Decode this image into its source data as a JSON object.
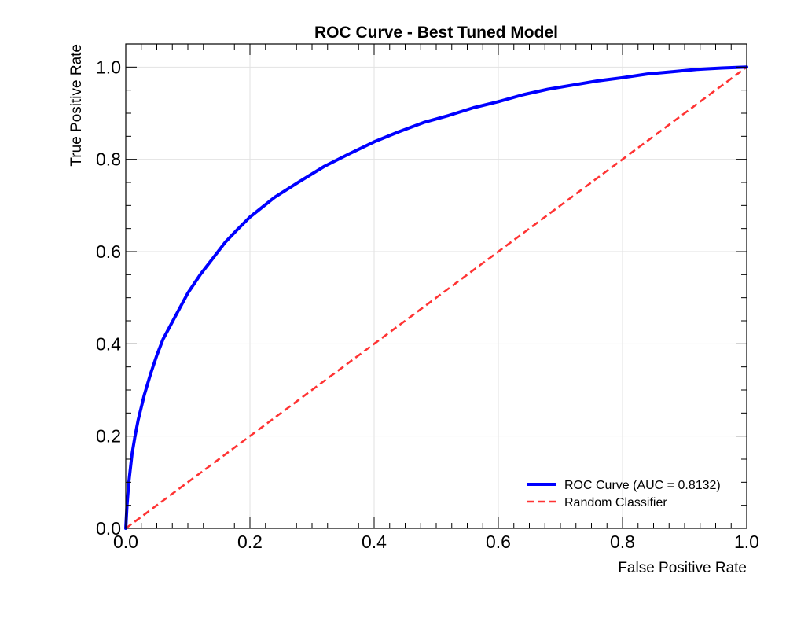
{
  "chart_data": {
    "type": "line",
    "title": "ROC Curve - Best Tuned Model",
    "xlabel": "False Positive Rate",
    "ylabel": "True Positive Rate",
    "xlim": [
      0.0,
      1.0
    ],
    "ylim": [
      0.0,
      1.05
    ],
    "xticks": [
      0.0,
      0.2,
      0.4,
      0.6,
      0.8,
      1.0
    ],
    "yticks": [
      0.0,
      0.2,
      0.4,
      0.6,
      0.8,
      1.0
    ],
    "xtick_labels": [
      "0.0",
      "0.2",
      "0.4",
      "0.6",
      "0.8",
      "1.0"
    ],
    "ytick_labels": [
      "0.0",
      "0.2",
      "0.4",
      "0.6",
      "0.8",
      "1.0"
    ],
    "grid": true,
    "legend_position": "lower-right",
    "series": [
      {
        "name": "ROC Curve (AUC = 0.8132)",
        "color": "#0000ff",
        "style": "solid",
        "x": [
          0.0,
          0.002,
          0.005,
          0.01,
          0.015,
          0.02,
          0.03,
          0.04,
          0.05,
          0.06,
          0.07,
          0.08,
          0.1,
          0.12,
          0.14,
          0.16,
          0.18,
          0.2,
          0.24,
          0.28,
          0.32,
          0.36,
          0.4,
          0.44,
          0.48,
          0.52,
          0.56,
          0.6,
          0.64,
          0.68,
          0.72,
          0.76,
          0.8,
          0.84,
          0.88,
          0.92,
          0.96,
          1.0
        ],
        "y": [
          0.0,
          0.05,
          0.1,
          0.16,
          0.2,
          0.235,
          0.29,
          0.335,
          0.375,
          0.41,
          0.435,
          0.46,
          0.51,
          0.55,
          0.585,
          0.62,
          0.648,
          0.675,
          0.718,
          0.752,
          0.785,
          0.812,
          0.838,
          0.86,
          0.88,
          0.895,
          0.912,
          0.925,
          0.94,
          0.952,
          0.961,
          0.97,
          0.977,
          0.985,
          0.99,
          0.995,
          0.998,
          1.0
        ]
      },
      {
        "name": "Random Classifier",
        "color": "#ff3333",
        "style": "dashed",
        "x": [
          0.0,
          1.0
        ],
        "y": [
          0.0,
          1.0
        ]
      }
    ]
  }
}
